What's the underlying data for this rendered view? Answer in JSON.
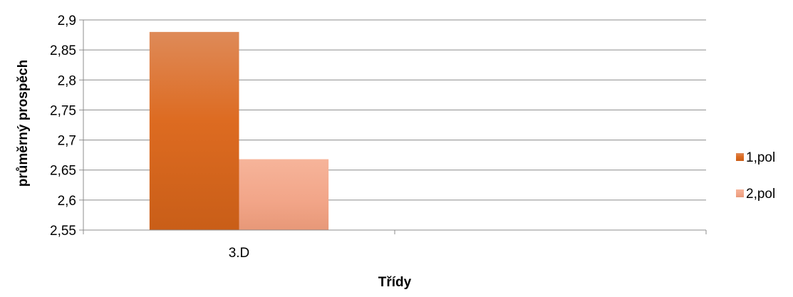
{
  "chart_data": {
    "type": "bar",
    "categories": [
      "3.D",
      ""
    ],
    "series": [
      {
        "name": "1,pol",
        "values": [
          2.88,
          null
        ],
        "color": "#d2651f"
      },
      {
        "name": "2,pol",
        "values": [
          2.668,
          null
        ],
        "color": "#f0a382"
      }
    ],
    "xlabel": "Třídy",
    "ylabel": "průměrný prospěch",
    "ylim": [
      2.55,
      2.9
    ],
    "yticks": [
      "2,55",
      "2,6",
      "2,65",
      "2,7",
      "2,75",
      "2,8",
      "2,85",
      "2,9"
    ],
    "ytick_values": [
      2.55,
      2.6,
      2.65,
      2.7,
      2.75,
      2.8,
      2.85,
      2.9
    ],
    "grid": true,
    "legend_position": "right"
  }
}
